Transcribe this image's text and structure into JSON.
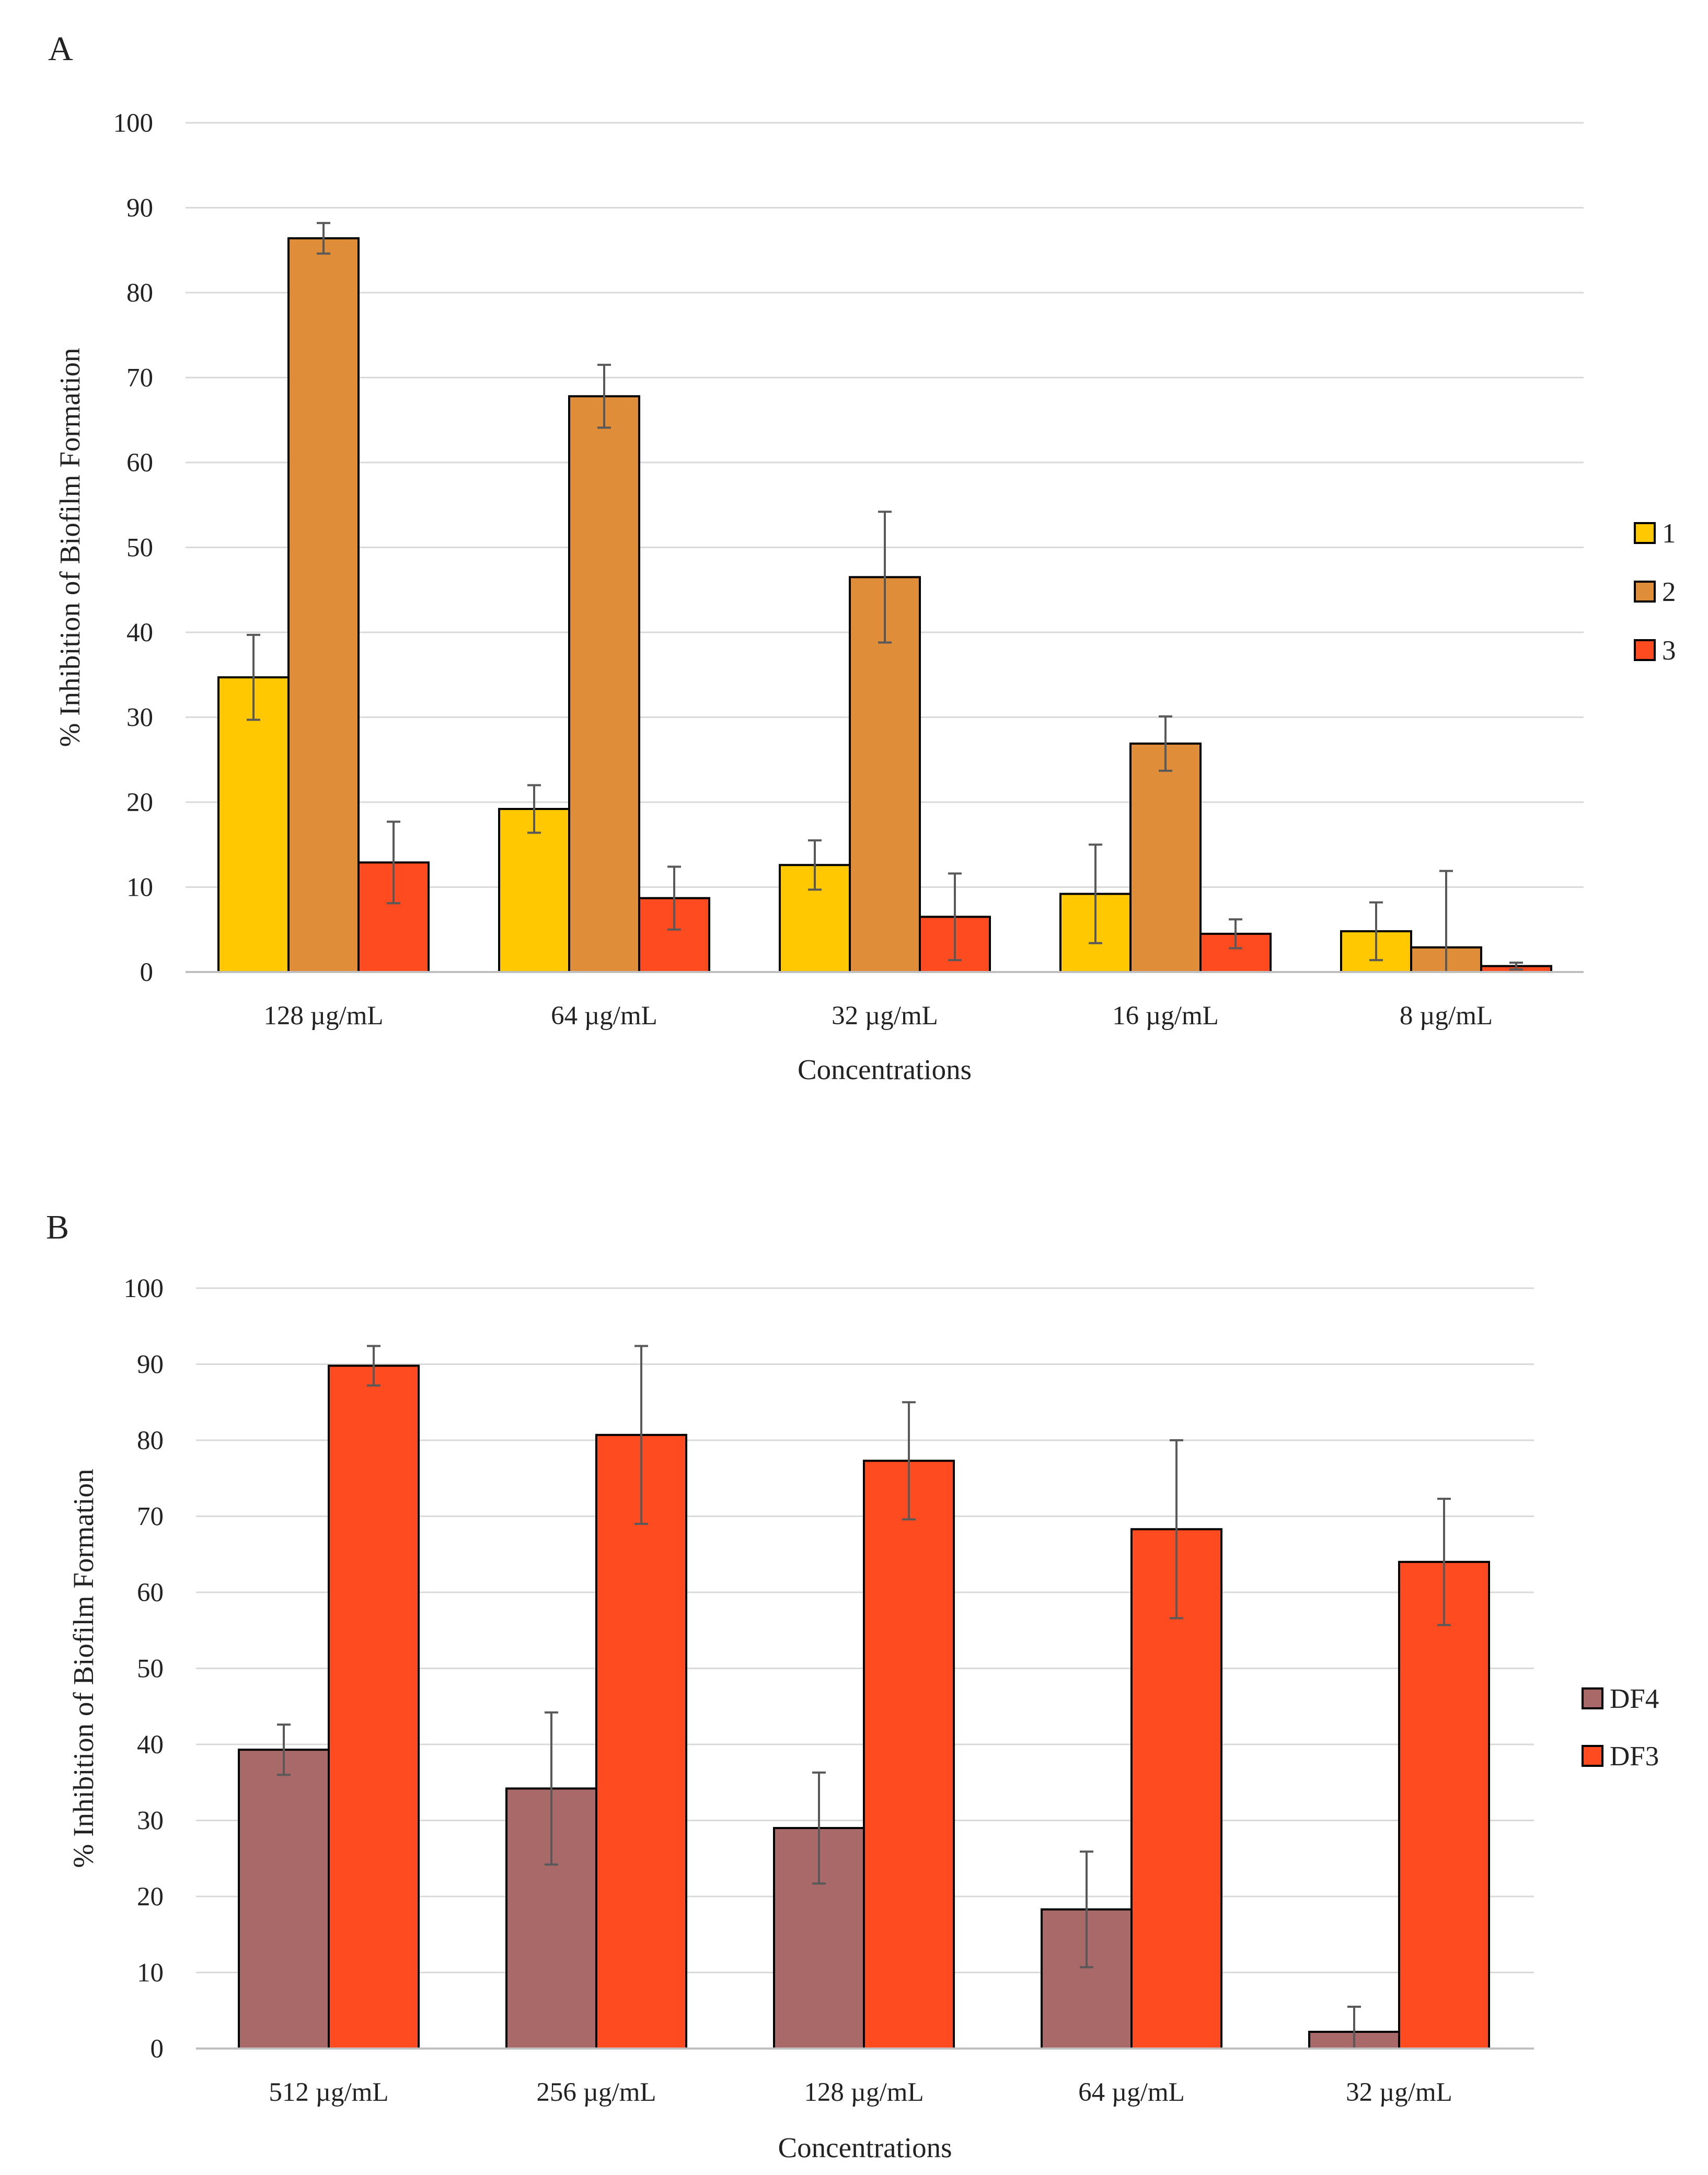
{
  "figure": {
    "colors": {
      "grid": "#d9d9d9",
      "axis": "#bfbfbf",
      "bar_outline": "#000000",
      "error_bar": "#595959"
    }
  },
  "chart_data": [
    {
      "panel_label": "A",
      "type": "bar",
      "title": "",
      "xlabel": "Concentrations",
      "ylabel": "% Inhibition of Biofilm Formation",
      "ylim": [
        0,
        100
      ],
      "yticks": [
        0,
        10,
        20,
        30,
        40,
        50,
        60,
        70,
        80,
        90,
        100
      ],
      "grid": true,
      "legend_position": "right",
      "categories": [
        "128 µg/mL",
        "64 µg/mL",
        "32 µg/mL",
        "16 µg/mL",
        "8 µg/mL"
      ],
      "series": [
        {
          "name": "1",
          "color": "#FFC800",
          "values": [
            34.7,
            19.2,
            12.6,
            9.2,
            4.8
          ],
          "errors": [
            5.0,
            2.8,
            2.9,
            5.8,
            3.4
          ]
        },
        {
          "name": "2",
          "color": "#E08D3A",
          "values": [
            86.4,
            67.8,
            46.5,
            26.9,
            2.9
          ],
          "errors": [
            1.8,
            3.7,
            7.7,
            3.2,
            9.0
          ]
        },
        {
          "name": "3",
          "color": "#FF4B1F",
          "values": [
            12.9,
            8.7,
            6.5,
            4.5,
            0.7
          ],
          "errors": [
            4.8,
            3.7,
            5.1,
            1.7,
            0.4
          ]
        }
      ]
    },
    {
      "panel_label": "B",
      "type": "bar",
      "title": "",
      "xlabel": "Concentrations",
      "ylabel": "% Inhibition of Biofilm Formation",
      "ylim": [
        0,
        100
      ],
      "yticks": [
        0,
        10,
        20,
        30,
        40,
        50,
        60,
        70,
        80,
        90,
        100
      ],
      "grid": true,
      "legend_position": "right",
      "categories": [
        "512 µg/mL",
        "256 µg/mL",
        "128 µg/mL",
        "64 µg/mL",
        "32 µg/mL"
      ],
      "series": [
        {
          "name": "DF4",
          "color": "#A96969",
          "values": [
            39.3,
            34.2,
            29.0,
            18.3,
            2.2
          ],
          "errors": [
            3.3,
            10.0,
            7.3,
            7.6,
            3.3
          ]
        },
        {
          "name": "DF3",
          "color": "#FF4B1F",
          "values": [
            89.8,
            80.7,
            77.3,
            68.3,
            64.0
          ],
          "errors": [
            2.6,
            11.7,
            7.7,
            11.7,
            8.3
          ]
        }
      ]
    }
  ]
}
